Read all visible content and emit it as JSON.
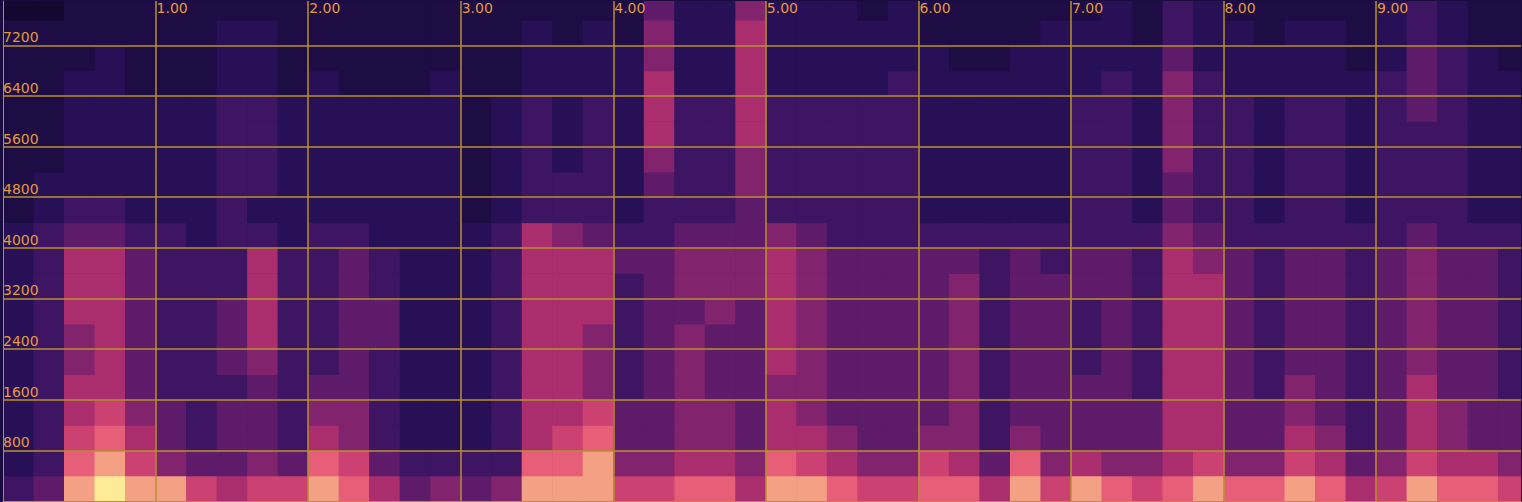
{
  "chart_data": {
    "type": "heatmap",
    "xlim": [
      0,
      9.95
    ],
    "ylim": [
      0,
      7900
    ],
    "xticks": [
      {
        "value": 1,
        "label": "1.00"
      },
      {
        "value": 2,
        "label": "2.00"
      },
      {
        "value": 3,
        "label": "3.00"
      },
      {
        "value": 4,
        "label": "4.00"
      },
      {
        "value": 5,
        "label": "5.00"
      },
      {
        "value": 6,
        "label": "6.00"
      },
      {
        "value": 7,
        "label": "7.00"
      },
      {
        "value": 8,
        "label": "8.00"
      },
      {
        "value": 9,
        "label": "9.00"
      }
    ],
    "yticks": [
      800,
      1600,
      2400,
      3200,
      4000,
      4800,
      5600,
      6400,
      7200
    ],
    "grid": true,
    "x": [
      0,
      0.2,
      0.4,
      0.6,
      0.8,
      1.0,
      1.2,
      1.4,
      1.6,
      1.8,
      2.0,
      2.2,
      2.4,
      2.6,
      2.8,
      3.0,
      3.2,
      3.4,
      3.6,
      3.8,
      4.0,
      4.2,
      4.4,
      4.6,
      4.8,
      5.0,
      5.2,
      5.4,
      5.6,
      5.8,
      6.0,
      6.2,
      6.4,
      6.6,
      6.8,
      7.0,
      7.2,
      7.4,
      7.6,
      7.8,
      8.0,
      8.2,
      8.4,
      8.6,
      8.8,
      9.0,
      9.2,
      9.4,
      9.6,
      9.8
    ],
    "y": [
      0,
      400,
      800,
      1200,
      1600,
      2000,
      2400,
      2800,
      3200,
      3600,
      4000,
      4400,
      4800,
      5200,
      5600,
      6000,
      6400,
      6800,
      7200,
      7600
    ],
    "values": [
      [
        3,
        2,
        2,
        2,
        2,
        2,
        2,
        2,
        2,
        2,
        2,
        1,
        1,
        1,
        1,
        1,
        1,
        1,
        1,
        0
      ],
      [
        4,
        3,
        3,
        3,
        3,
        3,
        3,
        3,
        3,
        3,
        3,
        2,
        2,
        1,
        1,
        1,
        1,
        1,
        1,
        0
      ],
      [
        9,
        8,
        7,
        6,
        6,
        5,
        5,
        6,
        6,
        6,
        4,
        3,
        2,
        2,
        2,
        2,
        2,
        1,
        1,
        1
      ],
      [
        10,
        9,
        8,
        7,
        6,
        6,
        6,
        6,
        6,
        6,
        4,
        3,
        2,
        2,
        2,
        2,
        2,
        2,
        1,
        1
      ],
      [
        9,
        7,
        6,
        5,
        4,
        4,
        4,
        4,
        4,
        4,
        3,
        2,
        2,
        2,
        2,
        2,
        1,
        1,
        1,
        1
      ],
      [
        9,
        5,
        4,
        4,
        3,
        3,
        3,
        3,
        3,
        3,
        3,
        2,
        2,
        2,
        2,
        2,
        1,
        1,
        1,
        1
      ],
      [
        7,
        4,
        3,
        3,
        3,
        3,
        3,
        3,
        3,
        3,
        2,
        2,
        2,
        2,
        2,
        2,
        1,
        1,
        1,
        1
      ],
      [
        6,
        4,
        4,
        4,
        3,
        4,
        4,
        4,
        3,
        3,
        3,
        3,
        3,
        3,
        3,
        3,
        2,
        2,
        2,
        1
      ],
      [
        7,
        5,
        4,
        4,
        4,
        5,
        6,
        6,
        6,
        6,
        3,
        2,
        3,
        3,
        3,
        3,
        2,
        2,
        2,
        1
      ],
      [
        7,
        4,
        3,
        3,
        3,
        3,
        3,
        3,
        3,
        3,
        2,
        2,
        2,
        2,
        2,
        2,
        1,
        1,
        1,
        1
      ],
      [
        9,
        8,
        6,
        5,
        4,
        3,
        3,
        3,
        3,
        3,
        3,
        2,
        2,
        2,
        2,
        2,
        2,
        1,
        1,
        1
      ],
      [
        8,
        7,
        5,
        5,
        4,
        4,
        4,
        4,
        4,
        4,
        3,
        2,
        2,
        2,
        2,
        2,
        1,
        1,
        1,
        1
      ],
      [
        6,
        4,
        3,
        3,
        3,
        3,
        4,
        4,
        3,
        3,
        2,
        2,
        2,
        2,
        2,
        2,
        1,
        1,
        1,
        1
      ],
      [
        4,
        3,
        2,
        2,
        2,
        2,
        2,
        2,
        2,
        2,
        2,
        2,
        2,
        2,
        2,
        2,
        1,
        1,
        1,
        1
      ],
      [
        5,
        3,
        2,
        2,
        2,
        2,
        2,
        2,
        2,
        2,
        2,
        2,
        2,
        2,
        2,
        2,
        2,
        1,
        1,
        1
      ],
      [
        4,
        3,
        2,
        2,
        2,
        2,
        2,
        2,
        2,
        2,
        2,
        1,
        1,
        1,
        1,
        1,
        1,
        1,
        1,
        1
      ],
      [
        5,
        3,
        3,
        3,
        3,
        3,
        3,
        3,
        3,
        3,
        3,
        2,
        2,
        2,
        2,
        2,
        1,
        1,
        1,
        1
      ],
      [
        9,
        8,
        6,
        6,
        6,
        6,
        6,
        6,
        6,
        6,
        6,
        3,
        3,
        3,
        3,
        3,
        2,
        2,
        2,
        1
      ],
      [
        9,
        8,
        7,
        6,
        6,
        6,
        6,
        6,
        6,
        6,
        5,
        3,
        3,
        2,
        2,
        2,
        2,
        2,
        1,
        1
      ],
      [
        9,
        9,
        8,
        7,
        5,
        5,
        5,
        6,
        6,
        6,
        4,
        3,
        3,
        3,
        3,
        3,
        2,
        2,
        2,
        1
      ],
      [
        7,
        5,
        4,
        4,
        3,
        3,
        3,
        3,
        3,
        4,
        3,
        2,
        2,
        2,
        2,
        2,
        2,
        2,
        1,
        1
      ],
      [
        7,
        5,
        4,
        4,
        4,
        4,
        4,
        4,
        4,
        4,
        3,
        3,
        4,
        5,
        6,
        6,
        6,
        5,
        5,
        4
      ],
      [
        8,
        6,
        5,
        5,
        5,
        5,
        5,
        4,
        5,
        5,
        4,
        3,
        3,
        3,
        3,
        3,
        2,
        2,
        2,
        2
      ],
      [
        8,
        6,
        5,
        5,
        4,
        4,
        4,
        5,
        5,
        5,
        4,
        3,
        3,
        3,
        3,
        3,
        2,
        2,
        2,
        2
      ],
      [
        6,
        5,
        4,
        4,
        4,
        4,
        4,
        4,
        5,
        5,
        4,
        4,
        5,
        5,
        6,
        6,
        6,
        6,
        6,
        5
      ],
      [
        9,
        8,
        6,
        6,
        5,
        6,
        6,
        6,
        6,
        6,
        5,
        3,
        3,
        3,
        3,
        3,
        2,
        2,
        2,
        2
      ],
      [
        9,
        7,
        6,
        5,
        5,
        5,
        5,
        5,
        5,
        5,
        4,
        3,
        3,
        3,
        3,
        3,
        2,
        2,
        2,
        2
      ],
      [
        8,
        6,
        5,
        4,
        4,
        4,
        4,
        4,
        4,
        4,
        3,
        3,
        3,
        3,
        3,
        3,
        2,
        2,
        2,
        2
      ],
      [
        7,
        5,
        4,
        4,
        4,
        4,
        4,
        4,
        4,
        4,
        3,
        3,
        3,
        3,
        3,
        3,
        2,
        2,
        2,
        1
      ],
      [
        7,
        5,
        4,
        4,
        4,
        4,
        4,
        4,
        4,
        4,
        3,
        3,
        3,
        3,
        3,
        3,
        3,
        2,
        2,
        2
      ],
      [
        8,
        7,
        5,
        4,
        4,
        4,
        4,
        4,
        4,
        4,
        3,
        2,
        2,
        2,
        2,
        2,
        2,
        2,
        1,
        1
      ],
      [
        8,
        6,
        5,
        5,
        5,
        5,
        5,
        5,
        5,
        4,
        3,
        2,
        2,
        2,
        2,
        2,
        2,
        1,
        1,
        1
      ],
      [
        6,
        4,
        3,
        3,
        3,
        3,
        3,
        3,
        3,
        3,
        3,
        2,
        2,
        2,
        2,
        2,
        2,
        1,
        1,
        1
      ],
      [
        9,
        8,
        5,
        4,
        4,
        4,
        4,
        4,
        4,
        4,
        3,
        2,
        2,
        2,
        2,
        2,
        2,
        2,
        1,
        1
      ],
      [
        7,
        5,
        4,
        4,
        4,
        4,
        4,
        4,
        4,
        3,
        3,
        2,
        2,
        2,
        2,
        2,
        2,
        2,
        2,
        1
      ],
      [
        9,
        6,
        4,
        4,
        4,
        3,
        3,
        3,
        4,
        4,
        3,
        3,
        3,
        3,
        3,
        3,
        2,
        2,
        2,
        1
      ],
      [
        8,
        5,
        4,
        4,
        4,
        4,
        4,
        4,
        4,
        4,
        3,
        3,
        3,
        3,
        3,
        3,
        3,
        2,
        2,
        2
      ],
      [
        7,
        5,
        4,
        4,
        3,
        3,
        3,
        3,
        3,
        3,
        3,
        2,
        2,
        2,
        2,
        2,
        2,
        2,
        1,
        1
      ],
      [
        8,
        6,
        6,
        6,
        6,
        6,
        6,
        6,
        6,
        6,
        5,
        4,
        4,
        5,
        5,
        5,
        5,
        4,
        3,
        3
      ],
      [
        9,
        7,
        6,
        6,
        6,
        6,
        6,
        6,
        6,
        5,
        4,
        3,
        3,
        3,
        3,
        3,
        3,
        2,
        2,
        2
      ],
      [
        8,
        5,
        4,
        4,
        4,
        4,
        4,
        4,
        4,
        4,
        3,
        3,
        3,
        3,
        3,
        3,
        2,
        2,
        2,
        1
      ],
      [
        8,
        5,
        4,
        4,
        3,
        3,
        3,
        3,
        3,
        3,
        3,
        2,
        2,
        2,
        2,
        2,
        2,
        2,
        1,
        1
      ],
      [
        9,
        7,
        6,
        5,
        5,
        4,
        4,
        4,
        4,
        4,
        3,
        3,
        3,
        3,
        3,
        3,
        2,
        2,
        2,
        1
      ],
      [
        8,
        6,
        5,
        4,
        4,
        4,
        4,
        4,
        4,
        4,
        3,
        3,
        3,
        3,
        3,
        3,
        2,
        2,
        2,
        1
      ],
      [
        6,
        4,
        3,
        3,
        3,
        3,
        3,
        3,
        3,
        3,
        3,
        2,
        2,
        2,
        2,
        2,
        2,
        1,
        1,
        1
      ],
      [
        7,
        5,
        4,
        4,
        4,
        4,
        4,
        4,
        4,
        4,
        3,
        3,
        3,
        3,
        3,
        3,
        3,
        2,
        2,
        2
      ],
      [
        9,
        7,
        6,
        6,
        6,
        5,
        5,
        5,
        5,
        5,
        4,
        3,
        3,
        3,
        3,
        4,
        4,
        4,
        3,
        3
      ],
      [
        8,
        6,
        5,
        5,
        4,
        4,
        4,
        4,
        4,
        4,
        3,
        3,
        3,
        3,
        3,
        3,
        3,
        3,
        2,
        2
      ],
      [
        8,
        6,
        4,
        4,
        4,
        4,
        4,
        4,
        4,
        4,
        3,
        2,
        2,
        2,
        2,
        2,
        2,
        2,
        1,
        1
      ],
      [
        7,
        5,
        4,
        4,
        3,
        3,
        3,
        3,
        3,
        3,
        3,
        2,
        2,
        2,
        2,
        2,
        2,
        1,
        1,
        1
      ]
    ]
  }
}
